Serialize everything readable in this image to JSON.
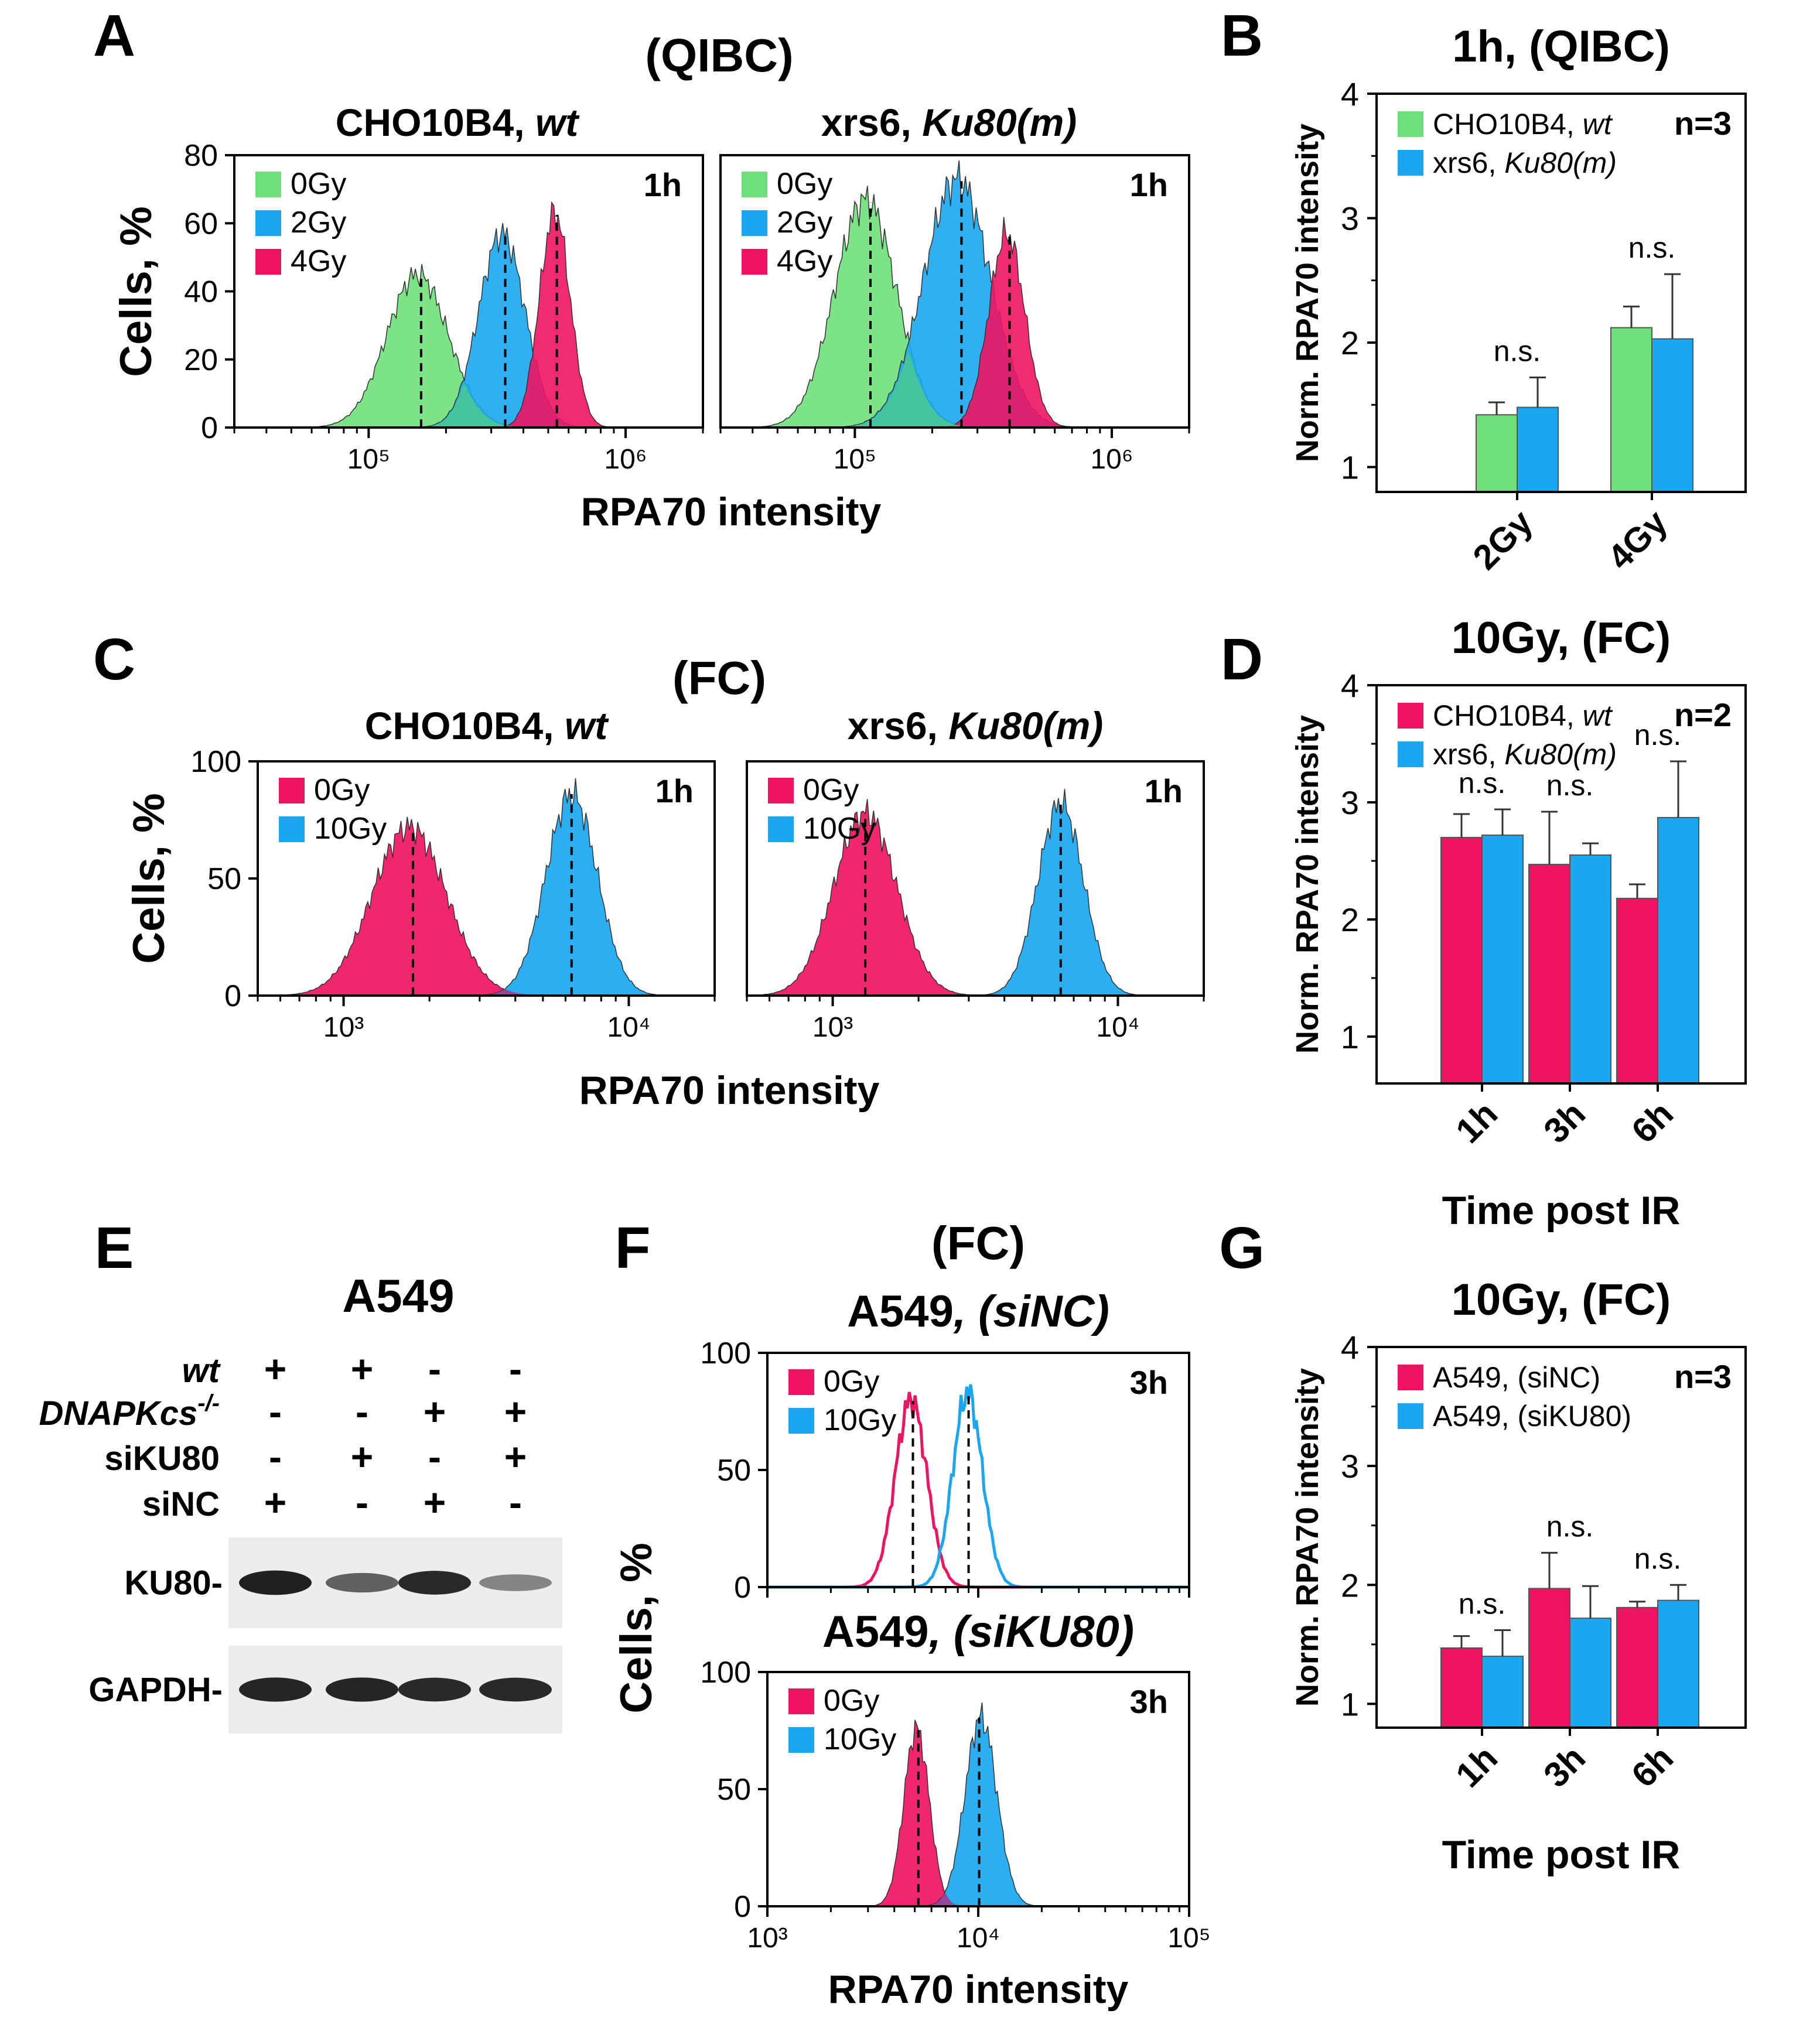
{
  "colors": {
    "green": "#6ee07a",
    "blue": "#1aa7ef",
    "red": "#ef1463",
    "purple": "#a8388c"
  },
  "panel_letters": [
    "A",
    "B",
    "C",
    "D",
    "E",
    "F",
    "G"
  ],
  "headers": {
    "A": "(QIBC)",
    "C": "(FC)",
    "F": "(FC)"
  },
  "chart_data": [
    {
      "id": "A1",
      "type": "area",
      "title_main": "CHO10B4, ",
      "title_italic": "wt",
      "annotation": "1h",
      "ylabel": "Cells, %",
      "xlabel": "RPA70 intensity",
      "xscale": "log",
      "xlim": [
        30000,
        2000000
      ],
      "ylim": [
        0,
        80
      ],
      "yticks": [
        "0",
        "20",
        "40",
        "60",
        "80"
      ],
      "xticks": [
        "10⁵",
        "10⁶"
      ],
      "series": [
        {
          "name": "0Gy",
          "color": "green",
          "peak": 155000,
          "height": 45,
          "width": 0.12,
          "median": 160000
        },
        {
          "name": "2Gy",
          "color": "blue",
          "peak": 330000,
          "height": 57,
          "width": 0.09,
          "median": 340000
        },
        {
          "name": "4Gy",
          "color": "red",
          "peak": 530000,
          "height": 63,
          "width": 0.06,
          "median": 540000
        }
      ]
    },
    {
      "id": "A2",
      "type": "area",
      "title_main": "xrs6, ",
      "title_italic": "Ku80(m)",
      "annotation": "1h",
      "xscale": "log",
      "xlim": [
        30000,
        2000000
      ],
      "ylim": [
        0,
        80
      ],
      "xticks": [
        "10⁵",
        "10⁶"
      ],
      "series": [
        {
          "name": "0Gy",
          "color": "green",
          "peak": 110000,
          "height": 67,
          "width": 0.12,
          "median": 115000
        },
        {
          "name": "2Gy",
          "color": "blue",
          "peak": 250000,
          "height": 73,
          "width": 0.13,
          "median": 260000
        },
        {
          "name": "4Gy",
          "color": "red",
          "peak": 390000,
          "height": 57,
          "width": 0.07,
          "median": 400000
        }
      ]
    },
    {
      "id": "B",
      "type": "bar",
      "title": "1h, (QIBC)",
      "ylabel": "Norm. RPA70 intensity",
      "ylim": [
        0.8,
        4
      ],
      "yticks": [
        "1",
        "2",
        "3",
        "4"
      ],
      "categories": [
        "2Gy",
        "4Gy"
      ],
      "n_label": "n=3",
      "series": [
        {
          "name_main": "CHO10B4, ",
          "name_italic": "wt",
          "color": "green",
          "values": [
            1.42,
            2.12
          ],
          "errors": [
            0.1,
            0.17
          ]
        },
        {
          "name_main": "xrs6, ",
          "name_italic": "Ku80(m)",
          "color": "blue",
          "values": [
            1.48,
            2.03
          ],
          "errors": [
            0.24,
            0.52
          ]
        }
      ],
      "significance": [
        "n.s.",
        "n.s."
      ]
    },
    {
      "id": "C1",
      "type": "area",
      "title_main": "CHO10B4, ",
      "title_italic": "wt",
      "annotation": "1h",
      "ylabel": "Cells, %",
      "xlabel": "RPA70 intensity",
      "xscale": "log",
      "xlim": [
        500,
        20000
      ],
      "ylim": [
        0,
        100
      ],
      "yticks": [
        "0",
        "50",
        "100"
      ],
      "xticks": [
        "10³",
        "10⁴"
      ],
      "series": [
        {
          "name": "0Gy",
          "color": "red",
          "peak": 1700,
          "height": 72,
          "width": 0.13,
          "median": 1750
        },
        {
          "name": "10Gy",
          "color": "blue",
          "peak": 6300,
          "height": 86,
          "width": 0.09,
          "median": 6300
        }
      ]
    },
    {
      "id": "C2",
      "type": "area",
      "title_main": "xrs6, ",
      "title_italic": "Ku80(m)",
      "annotation": "1h",
      "xscale": "log",
      "xlim": [
        500,
        20000
      ],
      "ylim": [
        0,
        100
      ],
      "xticks": [
        "10³",
        "10⁴"
      ],
      "series": [
        {
          "name": "0Gy",
          "color": "red",
          "peak": 1300,
          "height": 78,
          "width": 0.11,
          "median": 1300
        },
        {
          "name": "10Gy",
          "color": "blue",
          "peak": 6300,
          "height": 82,
          "width": 0.08,
          "median": 6300
        }
      ]
    },
    {
      "id": "D",
      "type": "bar",
      "title": "10Gy, (FC)",
      "ylabel": "Norm. RPA70 intensity",
      "xlabel": "Time post IR",
      "ylim": [
        0.6,
        4
      ],
      "yticks": [
        "1",
        "2",
        "3",
        "4"
      ],
      "categories": [
        "1h",
        "3h",
        "6h"
      ],
      "n_label": "n=2",
      "series": [
        {
          "name_main": "CHO10B4, ",
          "name_italic": "wt",
          "color": "red",
          "values": [
            2.7,
            2.47,
            2.18
          ],
          "errors": [
            0.2,
            0.45,
            0.12
          ]
        },
        {
          "name_main": "xrs6, ",
          "name_italic": "Ku80(m)",
          "color": "blue",
          "values": [
            2.72,
            2.55,
            2.87
          ],
          "errors": [
            0.22,
            0.1,
            0.48
          ]
        }
      ],
      "significance": [
        "n.s.",
        "n.s.",
        "n.s."
      ]
    },
    {
      "id": "F1",
      "type": "line",
      "title_main": "A549",
      "title_italic": ", (siNC)",
      "annotation": "3h",
      "xscale": "log",
      "xlim": [
        1000,
        100000
      ],
      "ylim": [
        0,
        100
      ],
      "yticks": [
        "0",
        "50",
        "100"
      ],
      "series": [
        {
          "name": "0Gy",
          "color": "red",
          "peak": 4800,
          "height": 80,
          "width": 0.075,
          "median": 4900
        },
        {
          "name": "10Gy",
          "color": "blue",
          "peak": 8900,
          "height": 83,
          "width": 0.07,
          "median": 9000
        }
      ]
    },
    {
      "id": "F2",
      "type": "area",
      "title_main": "A549",
      "title_italic": ", (siKU80)",
      "annotation": "3h",
      "ylabel": "Cells, %",
      "xlabel": "RPA70 intensity",
      "xscale": "log",
      "xlim": [
        1000,
        100000
      ],
      "ylim": [
        0,
        100
      ],
      "yticks": [
        "0",
        "50",
        "100"
      ],
      "xticks": [
        "10³",
        "10⁴",
        "10⁵"
      ],
      "series": [
        {
          "name": "0Gy",
          "color": "red",
          "peak": 5100,
          "height": 76,
          "width": 0.06,
          "median": 5200
        },
        {
          "name": "10Gy",
          "color": "blue",
          "peak": 10300,
          "height": 81,
          "width": 0.075,
          "median": 10100
        }
      ]
    },
    {
      "id": "G",
      "type": "bar",
      "title": "10Gy, (FC)",
      "ylabel": "Norm. RPA70 intensity",
      "xlabel": "Time post IR",
      "ylim": [
        0.8,
        4
      ],
      "yticks": [
        "1",
        "2",
        "3",
        "4"
      ],
      "categories": [
        "1h",
        "3h",
        "6h"
      ],
      "n_label": "n=3",
      "series": [
        {
          "name_main": "A549, (siNC)",
          "name_italic": "",
          "color": "red",
          "values": [
            1.47,
            1.97,
            1.81
          ],
          "errors": [
            0.1,
            0.3,
            0.05
          ]
        },
        {
          "name_main": "A549, (siKU80)",
          "name_italic": "",
          "color": "blue",
          "values": [
            1.4,
            1.72,
            1.87
          ],
          "errors": [
            0.22,
            0.27,
            0.13
          ]
        }
      ],
      "significance": [
        "n.s.",
        "n.s.",
        "n.s."
      ]
    }
  ],
  "blot": {
    "title": "A549",
    "rows": [
      {
        "label": "wt",
        "italic": true,
        "signs": [
          "+",
          "+",
          "-",
          "-"
        ]
      },
      {
        "label": "DNAPKcs",
        "sup": "-/-",
        "italic": true,
        "signs": [
          "-",
          "-",
          "+",
          "+"
        ]
      },
      {
        "label": "siKU80",
        "italic": false,
        "signs": [
          "-",
          "+",
          "-",
          "+"
        ]
      },
      {
        "label": "siNC",
        "italic": false,
        "signs": [
          "+",
          "-",
          "+",
          "-"
        ]
      }
    ],
    "bands": [
      {
        "label": "KU80-",
        "intensity": [
          0.92,
          0.62,
          0.88,
          0.45
        ]
      },
      {
        "label": "GAPDH-",
        "intensity": [
          0.9,
          0.9,
          0.88,
          0.88
        ]
      }
    ]
  }
}
